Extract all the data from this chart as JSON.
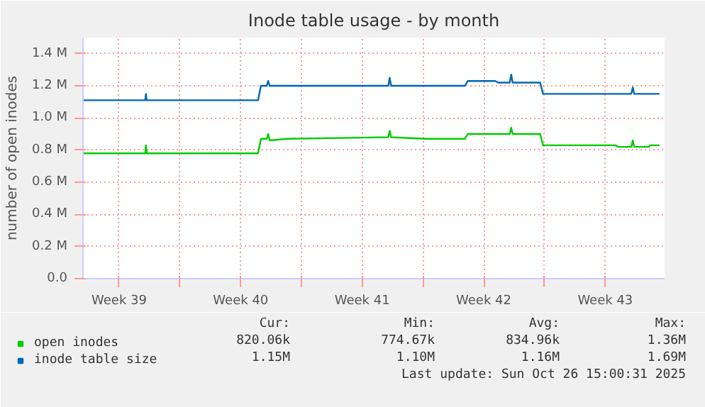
{
  "chart_data": {
    "type": "line",
    "title": "Inode table usage - by month",
    "ylabel": "number of open inodes",
    "x": [
      "2025-09-23T10:00",
      "2025-09-27T00:00",
      "2025-09-27T01:00",
      "2025-09-27T02:00",
      "2025-10-03T12:00",
      "2025-10-03T16:00",
      "2025-10-04T00:00",
      "2025-10-04T02:00",
      "2025-10-04T04:00",
      "2025-10-05T04:00",
      "2025-10-11T00:00",
      "2025-10-11T02:00",
      "2025-10-11T04:00",
      "2025-10-13T04:00",
      "2025-10-15T10:00",
      "2025-10-15T14:00",
      "2025-10-17T04:00",
      "2025-10-17T08:00",
      "2025-10-18T00:00",
      "2025-10-18T02:00",
      "2025-10-18T04:00",
      "2025-10-19T18:00",
      "2025-10-19T22:00",
      "2025-10-24T02:00",
      "2025-10-24T06:00",
      "2025-10-25T00:00",
      "2025-10-25T02:00",
      "2025-10-25T04:00",
      "2025-10-26T00:00",
      "2025-10-26T02:00",
      "2025-10-26T15:00"
    ],
    "series": [
      {
        "name": "open inodes",
        "color": "#00cc00",
        "values": [
          780000,
          780000,
          830000,
          780000,
          780000,
          870000,
          870000,
          900000,
          860000,
          870000,
          880000,
          920000,
          880000,
          870000,
          870000,
          900000,
          900000,
          900000,
          900000,
          940000,
          900000,
          900000,
          830000,
          830000,
          820000,
          820000,
          860000,
          820000,
          820000,
          830000,
          830000
        ]
      },
      {
        "name": "inode table size",
        "color": "#0066b3",
        "values": [
          1110000,
          1110000,
          1150000,
          1110000,
          1110000,
          1200000,
          1200000,
          1230000,
          1200000,
          1200000,
          1200000,
          1250000,
          1200000,
          1200000,
          1200000,
          1230000,
          1230000,
          1220000,
          1220000,
          1270000,
          1220000,
          1220000,
          1150000,
          1150000,
          1150000,
          1150000,
          1190000,
          1150000,
          1150000,
          1150000,
          1150000
        ]
      }
    ],
    "xlim": [
      "2025-09-23T10:00",
      "2025-10-26T22:00"
    ],
    "xticks": [
      {
        "value": "2025-09-25T12:00",
        "label": "Week 39"
      },
      {
        "value": "2025-09-29T00:00",
        "label": null
      },
      {
        "value": "2025-10-02T12:00",
        "label": "Week 40"
      },
      {
        "value": "2025-10-06T00:00",
        "label": null
      },
      {
        "value": "2025-10-09T12:00",
        "label": "Week 41"
      },
      {
        "value": "2025-10-13T00:00",
        "label": null
      },
      {
        "value": "2025-10-16T12:00",
        "label": "Week 42"
      },
      {
        "value": "2025-10-20T00:00",
        "label": null
      },
      {
        "value": "2025-10-23T12:00",
        "label": "Week 43"
      }
    ],
    "ylim": [
      0,
      1500000
    ],
    "yticks": [
      {
        "value": 0,
        "label": "0.0"
      },
      {
        "value": 200000,
        "label": "0.2 M"
      },
      {
        "value": 400000,
        "label": "0.4 M"
      },
      {
        "value": 600000,
        "label": "0.6 M"
      },
      {
        "value": 800000,
        "label": "0.8 M"
      },
      {
        "value": 1000000,
        "label": "1.0 M"
      },
      {
        "value": 1200000,
        "label": "1.2 M"
      },
      {
        "value": 1400000,
        "label": "1.4 M"
      }
    ],
    "grid": true,
    "legend": "bottom",
    "marker": "none",
    "line_style": "solid",
    "annotations": [
      "Cur:",
      "Min:",
      "Avg:",
      "Max:",
      "820.06k",
      "774.67k",
      "834.96k",
      "1.36M",
      "1.15M",
      "1.10M",
      "1.16M",
      "1.69M",
      "Last update: Sun Oct 26 15:00:31 2025"
    ]
  }
}
